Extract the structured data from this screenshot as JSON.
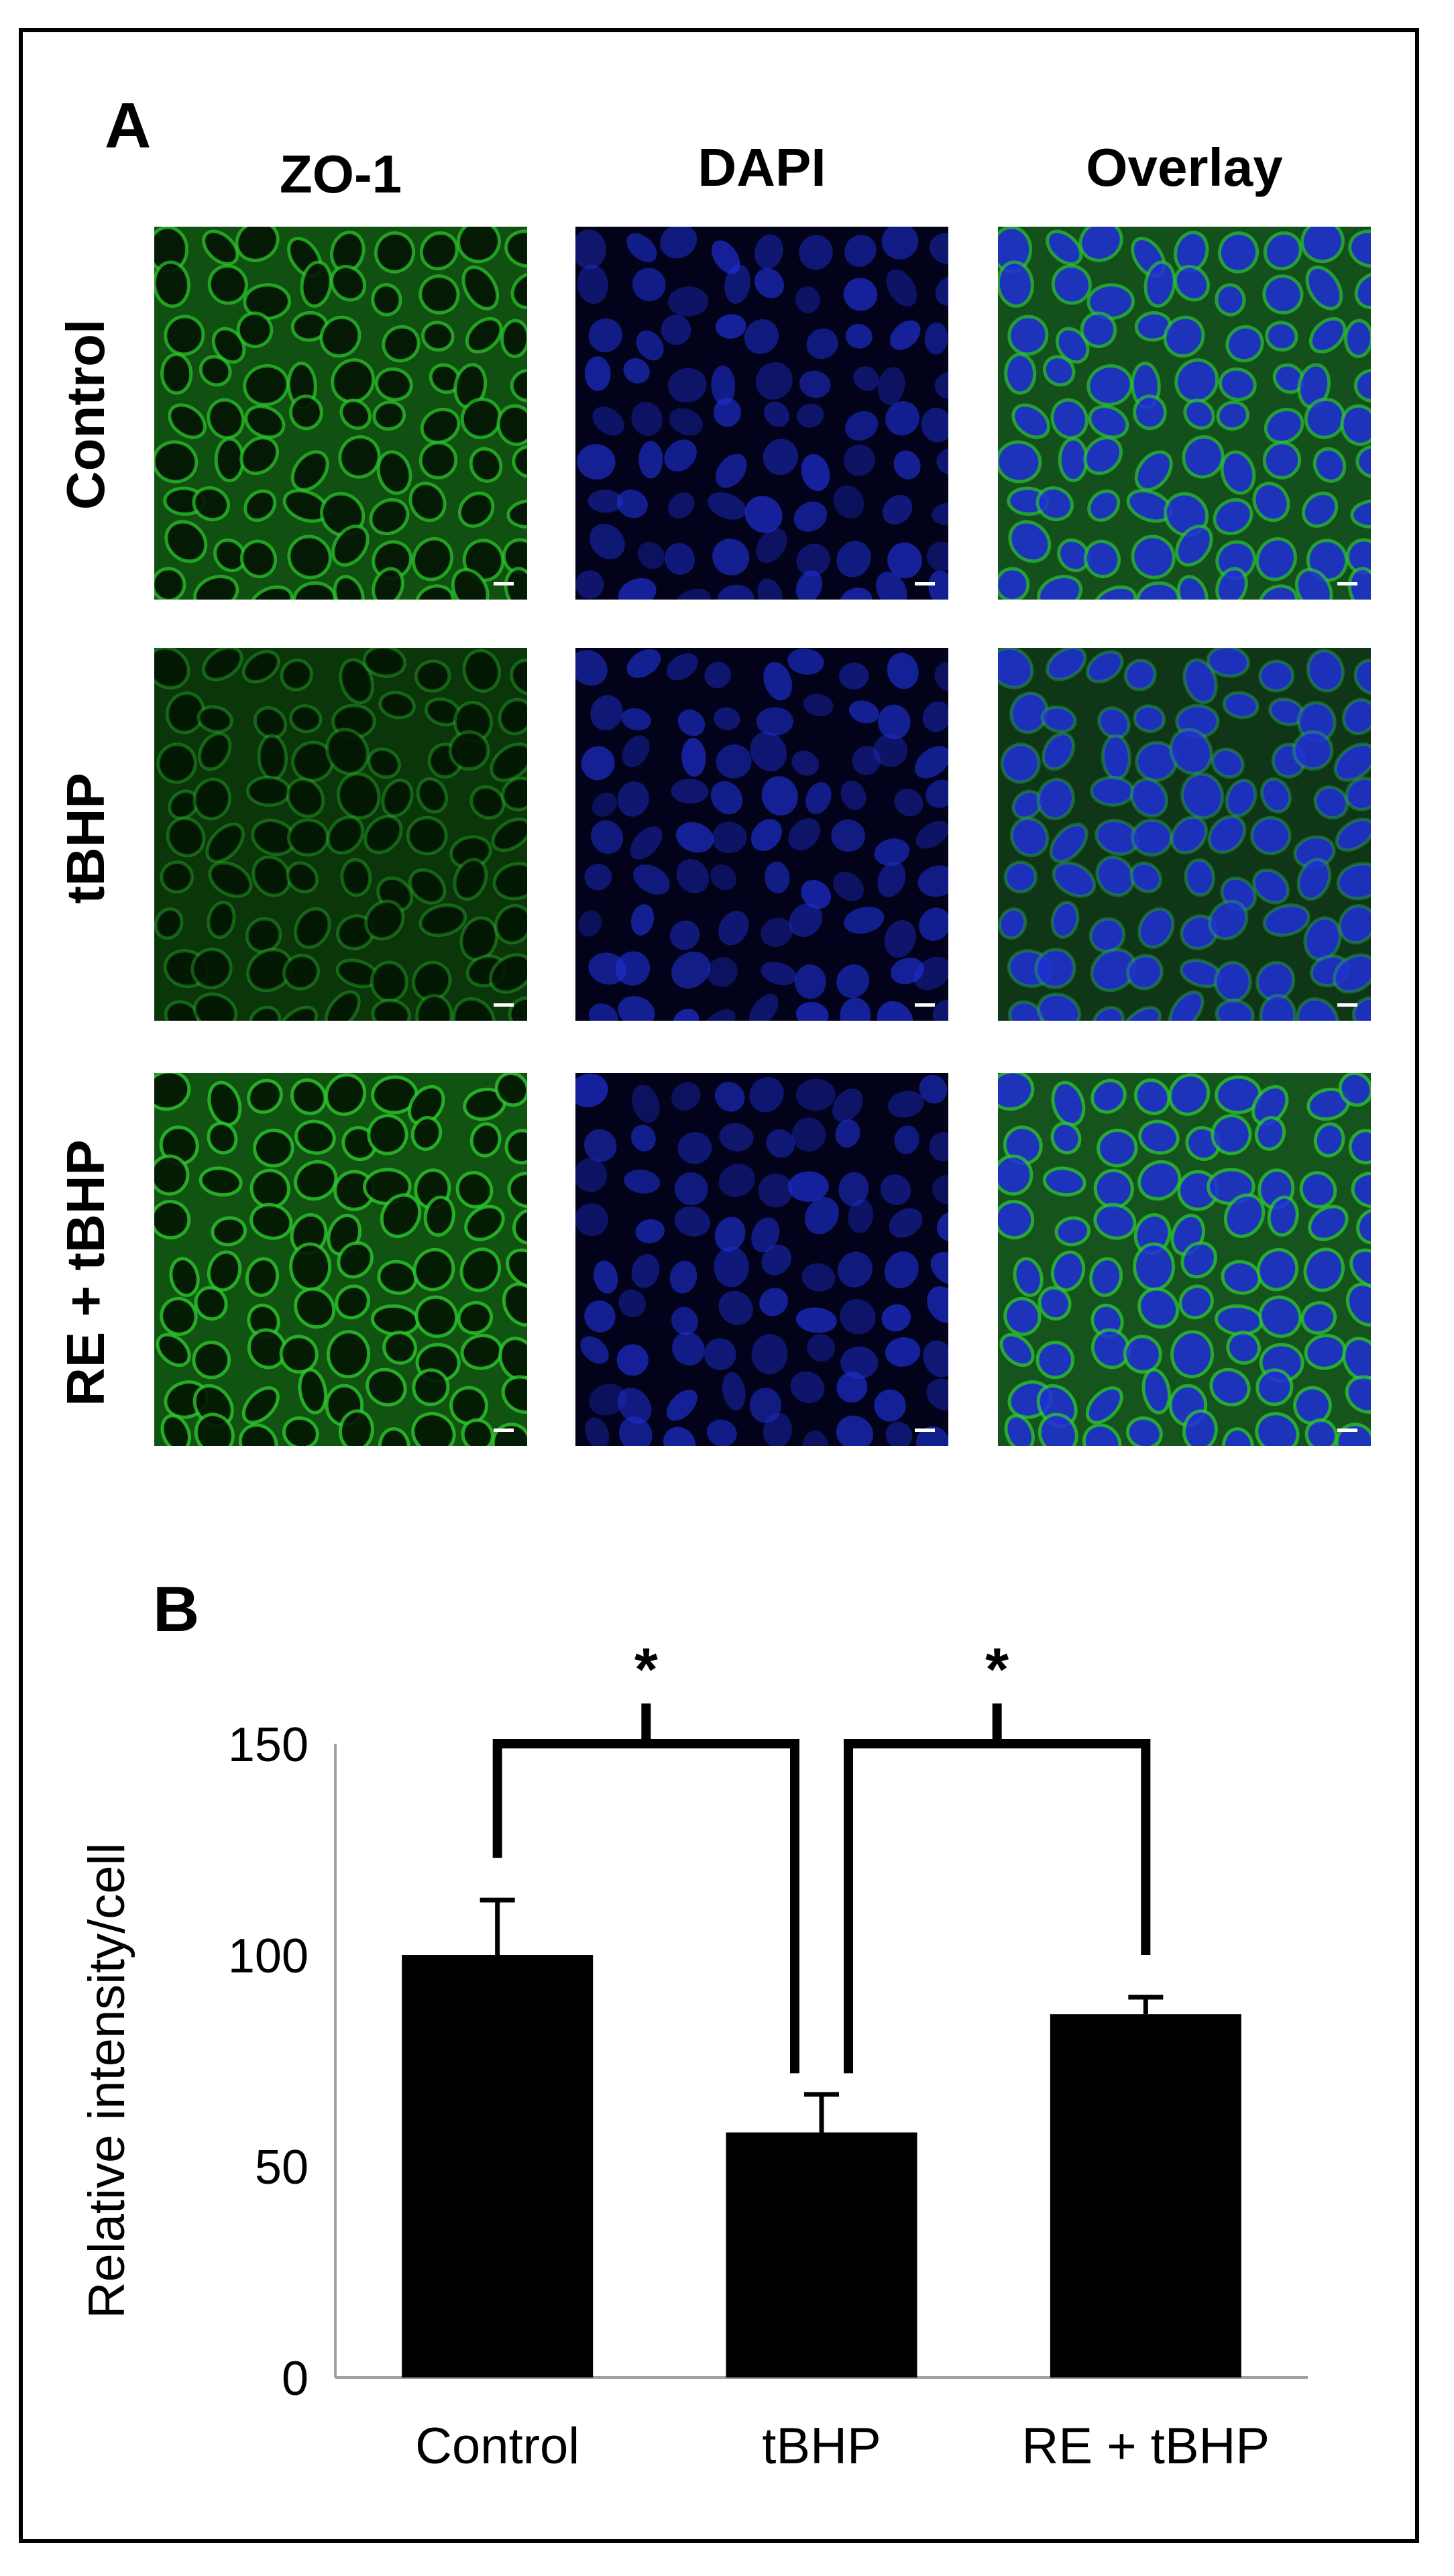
{
  "panel_a": {
    "letter": "A",
    "columns": [
      "ZO-1",
      "DAPI",
      "Overlay"
    ],
    "rows": [
      "Control",
      "tBHP",
      "RE + tBHP"
    ]
  },
  "panel_b": {
    "letter": "B"
  },
  "colors": {
    "zo1_green": "#2ecc2e",
    "dapi_blue": "#1f2fd6",
    "bar_fill": "#000000",
    "axis_gray": "#a0a0a0"
  },
  "chart_data": {
    "type": "bar",
    "categories": [
      "Control",
      "tBHP",
      "RE + tBHP"
    ],
    "values": [
      100,
      58,
      86
    ],
    "error": [
      13,
      9,
      4
    ],
    "ylabel": "Relative intensity/cell",
    "xlabel": "",
    "ylim": [
      0,
      150
    ],
    "yticks": [
      0,
      50,
      100,
      150
    ],
    "grid": false,
    "significance": [
      {
        "from": "Control",
        "to": "tBHP",
        "label": "*"
      },
      {
        "from": "tBHP",
        "to": "RE + tBHP",
        "label": "*"
      }
    ]
  }
}
